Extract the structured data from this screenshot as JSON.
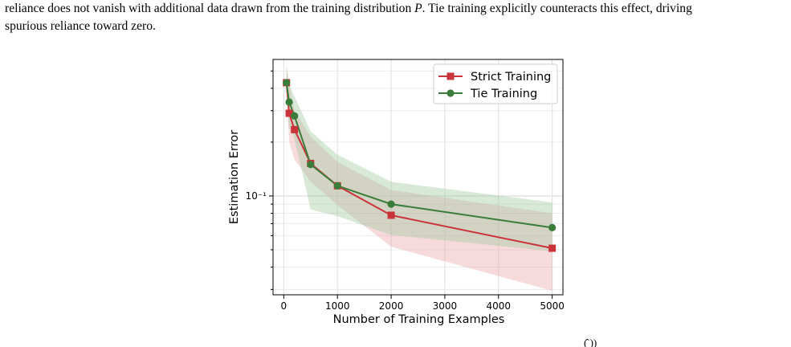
{
  "paragraph": {
    "line1_a": "reliance does not vanish with additional data drawn from the training distribution ",
    "line1_var": "P",
    "line1_b": ". Tie training explicitly counteracts this effect, driving",
    "line2": "spurious reliance toward zero."
  },
  "caption_fragment": "(̂   ))",
  "chart_data": {
    "type": "line",
    "ylabel": "Estimation Error",
    "xlabel": "Number of Training Examples",
    "yscale": "log",
    "xlim": [
      -200,
      5200
    ],
    "ylim": [
      0.028,
      0.58
    ],
    "x_ticks": [
      0,
      1000,
      2000,
      3000,
      4000,
      5000
    ],
    "x_tick_labels": [
      "0",
      "1000",
      "2000",
      "3000",
      "4000",
      "5000"
    ],
    "y_major_tick": 0.1,
    "y_major_tick_label": "10⁻¹",
    "grid": true,
    "legend": {
      "placement": "top-right",
      "entries": [
        "Strict Training",
        "Tie Training"
      ]
    },
    "series": [
      {
        "name": "Strict Training",
        "color": "#c9343a",
        "marker": "square",
        "x": [
          50,
          100,
          200,
          500,
          1000,
          2000,
          5000
        ],
        "y": [
          0.43,
          0.29,
          0.235,
          0.152,
          0.114,
          0.078,
          0.051
        ],
        "lower": [
          0.42,
          0.2,
          0.16,
          0.12,
          0.089,
          0.052,
          0.0295
        ],
        "upper": [
          0.52,
          0.42,
          0.3,
          0.215,
          0.155,
          0.108,
          0.08
        ]
      },
      {
        "name": "Tie Training",
        "color": "#3a7d3a",
        "marker": "circle",
        "x": [
          50,
          100,
          200,
          500,
          1000,
          2000,
          5000
        ],
        "y": [
          0.43,
          0.335,
          0.28,
          0.15,
          0.114,
          0.09,
          0.0665
        ],
        "lower": [
          0.39,
          0.24,
          0.21,
          0.084,
          0.077,
          0.0605,
          0.049
        ],
        "upper": [
          0.55,
          0.42,
          0.36,
          0.23,
          0.17,
          0.12,
          0.092
        ]
      }
    ]
  }
}
